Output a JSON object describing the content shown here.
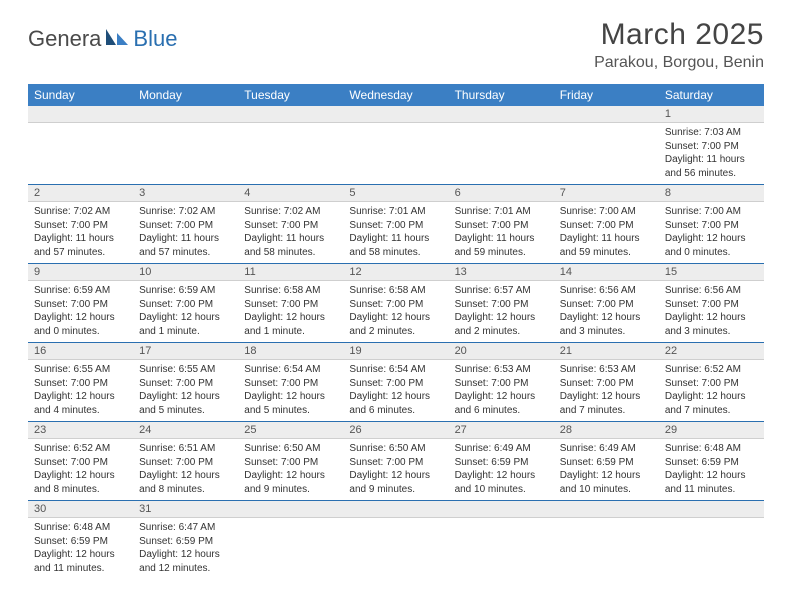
{
  "logo": {
    "part1": "Genera",
    "part2": "Blue"
  },
  "title": "March 2025",
  "location": "Parakou, Borgou, Benin",
  "colors": {
    "header_bg": "#3b7fc4",
    "header_text": "#ffffff",
    "row_divider": "#2a6fb0",
    "daynum_bg": "#ededed",
    "logo_accent": "#2a6fb0"
  },
  "weekdays": [
    "Sunday",
    "Monday",
    "Tuesday",
    "Wednesday",
    "Thursday",
    "Friday",
    "Saturday"
  ],
  "weeks": [
    {
      "nums": [
        "",
        "",
        "",
        "",
        "",
        "",
        "1"
      ],
      "cells": [
        null,
        null,
        null,
        null,
        null,
        null,
        {
          "sunrise": "Sunrise: 7:03 AM",
          "sunset": "Sunset: 7:00 PM",
          "day1": "Daylight: 11 hours",
          "day2": "and 56 minutes."
        }
      ]
    },
    {
      "nums": [
        "2",
        "3",
        "4",
        "5",
        "6",
        "7",
        "8"
      ],
      "cells": [
        {
          "sunrise": "Sunrise: 7:02 AM",
          "sunset": "Sunset: 7:00 PM",
          "day1": "Daylight: 11 hours",
          "day2": "and 57 minutes."
        },
        {
          "sunrise": "Sunrise: 7:02 AM",
          "sunset": "Sunset: 7:00 PM",
          "day1": "Daylight: 11 hours",
          "day2": "and 57 minutes."
        },
        {
          "sunrise": "Sunrise: 7:02 AM",
          "sunset": "Sunset: 7:00 PM",
          "day1": "Daylight: 11 hours",
          "day2": "and 58 minutes."
        },
        {
          "sunrise": "Sunrise: 7:01 AM",
          "sunset": "Sunset: 7:00 PM",
          "day1": "Daylight: 11 hours",
          "day2": "and 58 minutes."
        },
        {
          "sunrise": "Sunrise: 7:01 AM",
          "sunset": "Sunset: 7:00 PM",
          "day1": "Daylight: 11 hours",
          "day2": "and 59 minutes."
        },
        {
          "sunrise": "Sunrise: 7:00 AM",
          "sunset": "Sunset: 7:00 PM",
          "day1": "Daylight: 11 hours",
          "day2": "and 59 minutes."
        },
        {
          "sunrise": "Sunrise: 7:00 AM",
          "sunset": "Sunset: 7:00 PM",
          "day1": "Daylight: 12 hours",
          "day2": "and 0 minutes."
        }
      ]
    },
    {
      "nums": [
        "9",
        "10",
        "11",
        "12",
        "13",
        "14",
        "15"
      ],
      "cells": [
        {
          "sunrise": "Sunrise: 6:59 AM",
          "sunset": "Sunset: 7:00 PM",
          "day1": "Daylight: 12 hours",
          "day2": "and 0 minutes."
        },
        {
          "sunrise": "Sunrise: 6:59 AM",
          "sunset": "Sunset: 7:00 PM",
          "day1": "Daylight: 12 hours",
          "day2": "and 1 minute."
        },
        {
          "sunrise": "Sunrise: 6:58 AM",
          "sunset": "Sunset: 7:00 PM",
          "day1": "Daylight: 12 hours",
          "day2": "and 1 minute."
        },
        {
          "sunrise": "Sunrise: 6:58 AM",
          "sunset": "Sunset: 7:00 PM",
          "day1": "Daylight: 12 hours",
          "day2": "and 2 minutes."
        },
        {
          "sunrise": "Sunrise: 6:57 AM",
          "sunset": "Sunset: 7:00 PM",
          "day1": "Daylight: 12 hours",
          "day2": "and 2 minutes."
        },
        {
          "sunrise": "Sunrise: 6:56 AM",
          "sunset": "Sunset: 7:00 PM",
          "day1": "Daylight: 12 hours",
          "day2": "and 3 minutes."
        },
        {
          "sunrise": "Sunrise: 6:56 AM",
          "sunset": "Sunset: 7:00 PM",
          "day1": "Daylight: 12 hours",
          "day2": "and 3 minutes."
        }
      ]
    },
    {
      "nums": [
        "16",
        "17",
        "18",
        "19",
        "20",
        "21",
        "22"
      ],
      "cells": [
        {
          "sunrise": "Sunrise: 6:55 AM",
          "sunset": "Sunset: 7:00 PM",
          "day1": "Daylight: 12 hours",
          "day2": "and 4 minutes."
        },
        {
          "sunrise": "Sunrise: 6:55 AM",
          "sunset": "Sunset: 7:00 PM",
          "day1": "Daylight: 12 hours",
          "day2": "and 5 minutes."
        },
        {
          "sunrise": "Sunrise: 6:54 AM",
          "sunset": "Sunset: 7:00 PM",
          "day1": "Daylight: 12 hours",
          "day2": "and 5 minutes."
        },
        {
          "sunrise": "Sunrise: 6:54 AM",
          "sunset": "Sunset: 7:00 PM",
          "day1": "Daylight: 12 hours",
          "day2": "and 6 minutes."
        },
        {
          "sunrise": "Sunrise: 6:53 AM",
          "sunset": "Sunset: 7:00 PM",
          "day1": "Daylight: 12 hours",
          "day2": "and 6 minutes."
        },
        {
          "sunrise": "Sunrise: 6:53 AM",
          "sunset": "Sunset: 7:00 PM",
          "day1": "Daylight: 12 hours",
          "day2": "and 7 minutes."
        },
        {
          "sunrise": "Sunrise: 6:52 AM",
          "sunset": "Sunset: 7:00 PM",
          "day1": "Daylight: 12 hours",
          "day2": "and 7 minutes."
        }
      ]
    },
    {
      "nums": [
        "23",
        "24",
        "25",
        "26",
        "27",
        "28",
        "29"
      ],
      "cells": [
        {
          "sunrise": "Sunrise: 6:52 AM",
          "sunset": "Sunset: 7:00 PM",
          "day1": "Daylight: 12 hours",
          "day2": "and 8 minutes."
        },
        {
          "sunrise": "Sunrise: 6:51 AM",
          "sunset": "Sunset: 7:00 PM",
          "day1": "Daylight: 12 hours",
          "day2": "and 8 minutes."
        },
        {
          "sunrise": "Sunrise: 6:50 AM",
          "sunset": "Sunset: 7:00 PM",
          "day1": "Daylight: 12 hours",
          "day2": "and 9 minutes."
        },
        {
          "sunrise": "Sunrise: 6:50 AM",
          "sunset": "Sunset: 7:00 PM",
          "day1": "Daylight: 12 hours",
          "day2": "and 9 minutes."
        },
        {
          "sunrise": "Sunrise: 6:49 AM",
          "sunset": "Sunset: 6:59 PM",
          "day1": "Daylight: 12 hours",
          "day2": "and 10 minutes."
        },
        {
          "sunrise": "Sunrise: 6:49 AM",
          "sunset": "Sunset: 6:59 PM",
          "day1": "Daylight: 12 hours",
          "day2": "and 10 minutes."
        },
        {
          "sunrise": "Sunrise: 6:48 AM",
          "sunset": "Sunset: 6:59 PM",
          "day1": "Daylight: 12 hours",
          "day2": "and 11 minutes."
        }
      ]
    },
    {
      "nums": [
        "30",
        "31",
        "",
        "",
        "",
        "",
        ""
      ],
      "cells": [
        {
          "sunrise": "Sunrise: 6:48 AM",
          "sunset": "Sunset: 6:59 PM",
          "day1": "Daylight: 12 hours",
          "day2": "and 11 minutes."
        },
        {
          "sunrise": "Sunrise: 6:47 AM",
          "sunset": "Sunset: 6:59 PM",
          "day1": "Daylight: 12 hours",
          "day2": "and 12 minutes."
        },
        null,
        null,
        null,
        null,
        null
      ]
    }
  ]
}
